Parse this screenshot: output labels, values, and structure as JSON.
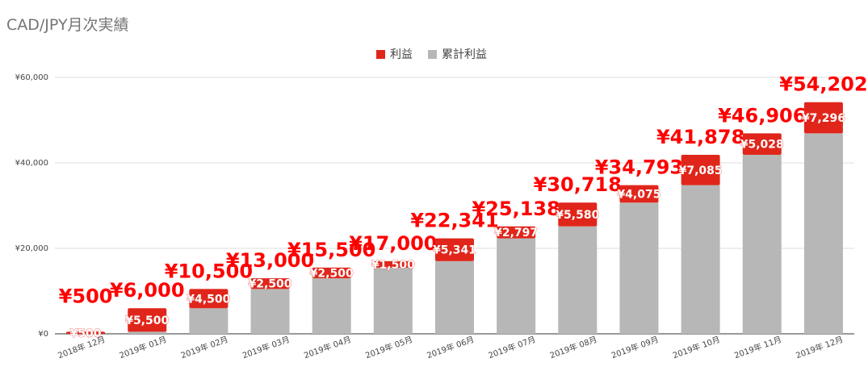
{
  "chart_data": {
    "type": "bar",
    "stacked": true,
    "title": "CAD/JPY月次実績",
    "categories": [
      "2018年 12月",
      "2019年 01月",
      "2019年 02月",
      "2019年 03月",
      "2019年 04月",
      "2019年 05月",
      "2019年 06月",
      "2019年 07月",
      "2019年 08月",
      "2019年 09月",
      "2019年 10月",
      "2019年 11月",
      "2019年 12月"
    ],
    "series": [
      {
        "name": "累計利益",
        "color": "#b7b7b7",
        "values": [
          0,
          500,
          6000,
          10500,
          13000,
          15500,
          17000,
          22341,
          25138,
          30718,
          34793,
          41878,
          46906
        ]
      },
      {
        "name": "利益",
        "color": "#e0261b",
        "values": [
          500,
          5500,
          4500,
          2500,
          2500,
          1500,
          5341,
          2797,
          5580,
          4075,
          7085,
          5028,
          7296
        ]
      }
    ],
    "segment_labels": [
      "¥500",
      "¥5,500",
      "¥4,500",
      "¥2,500",
      "¥2,500",
      "¥1,500",
      "¥5,341",
      "¥2,797",
      "¥5,580",
      "¥4,075",
      "¥7,085",
      "¥5,028",
      "¥7,296"
    ],
    "total_labels": [
      "¥500",
      "¥6,000",
      "¥10,500",
      "¥13,000",
      "¥15,500",
      "¥17,000",
      "¥22,341",
      "¥25,138",
      "¥30,718",
      "¥34,793",
      "¥41,878",
      "¥46,906",
      "¥54,202"
    ],
    "yticks": [
      0,
      20000,
      40000,
      60000
    ],
    "ytick_labels": [
      "¥0",
      "¥20,000",
      "¥40,000",
      "¥60,000"
    ],
    "ylim": [
      0,
      60000
    ],
    "grid": true,
    "legend_position": "top"
  }
}
